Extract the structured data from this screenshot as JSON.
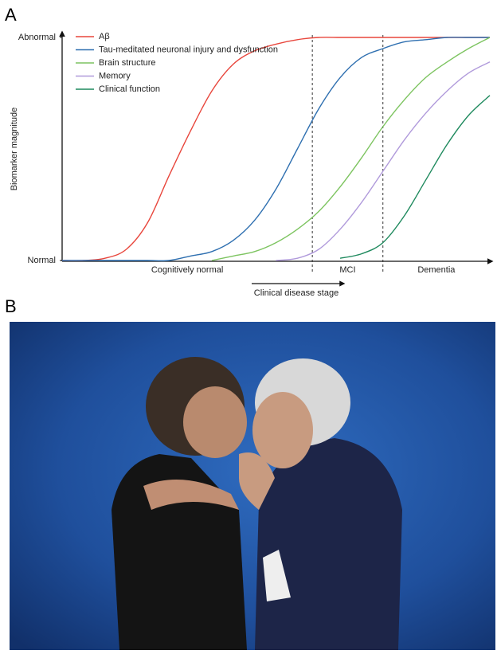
{
  "panel_labels": [
    "A",
    "B"
  ],
  "chart_data": {
    "type": "line",
    "ylabel": "Biomarker magnitude",
    "xlabel": "Clinical disease stage",
    "xlim": [
      0,
      100
    ],
    "ylim": [
      0,
      1
    ],
    "yticks": [
      {
        "value": 0,
        "label": "Normal"
      },
      {
        "value": 1,
        "label": "Abnormal"
      }
    ],
    "stages": [
      "Cognitively normal",
      "MCI",
      "Dementia"
    ],
    "stage_boundaries": [
      58.5,
      75
    ],
    "x": [
      0,
      5,
      10,
      15,
      20,
      25,
      30,
      35,
      40,
      45,
      50,
      55,
      60,
      65,
      70,
      75,
      80,
      85,
      90,
      95,
      100
    ],
    "series": [
      {
        "name": "Aβ",
        "color": "#e8463c",
        "values": [
          0,
          0,
          0.01,
          0.05,
          0.17,
          0.38,
          0.58,
          0.76,
          0.88,
          0.94,
          0.97,
          0.99,
          1,
          1,
          1,
          1,
          1,
          1,
          1,
          1,
          1
        ]
      },
      {
        "name": "Tau-meditated neuronal injury and dysfunction",
        "color": "#2e6fb0",
        "values": [
          0,
          0,
          0,
          0,
          0,
          0,
          0.02,
          0.04,
          0.09,
          0.18,
          0.32,
          0.5,
          0.68,
          0.82,
          0.91,
          0.95,
          0.98,
          0.99,
          1,
          1,
          1
        ]
      },
      {
        "name": "Brain structure",
        "color": "#7dc460",
        "values": [
          null,
          null,
          null,
          null,
          null,
          null,
          null,
          0,
          0.02,
          0.04,
          0.08,
          0.14,
          0.22,
          0.33,
          0.46,
          0.6,
          0.72,
          0.82,
          0.89,
          0.95,
          1
        ]
      },
      {
        "name": "Memory",
        "color": "#b09adb",
        "values": [
          null,
          null,
          null,
          null,
          null,
          null,
          null,
          null,
          null,
          null,
          0,
          0.01,
          0.05,
          0.14,
          0.26,
          0.4,
          0.54,
          0.66,
          0.76,
          0.84,
          0.89
        ]
      },
      {
        "name": "Clinical function",
        "color": "#1f8a5e",
        "values": [
          null,
          null,
          null,
          null,
          null,
          null,
          null,
          null,
          null,
          null,
          null,
          null,
          null,
          0.01,
          0.03,
          0.08,
          0.2,
          0.36,
          0.52,
          0.65,
          0.74
        ]
      }
    ]
  }
}
